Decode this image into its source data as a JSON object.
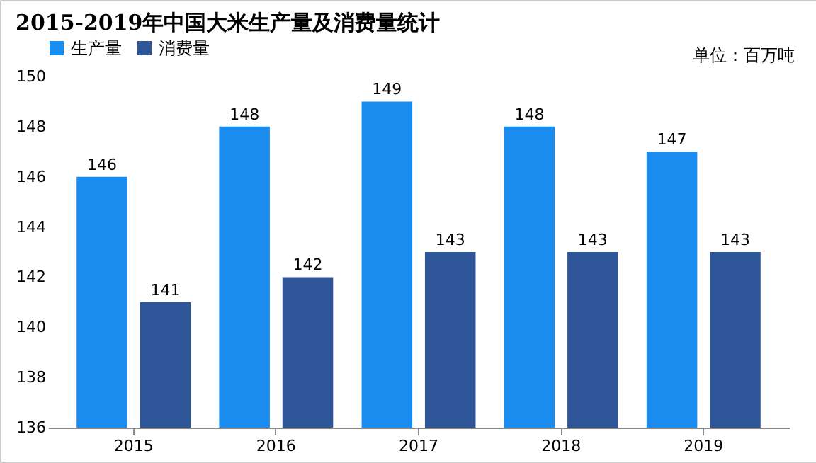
{
  "chart_data": {
    "type": "bar",
    "title": "2015-2019年中国大米生产量及消费量统计",
    "annotations": [
      "单位：百万吨"
    ],
    "categories": [
      "2015",
      "2016",
      "2017",
      "2018",
      "2019"
    ],
    "series": [
      {
        "name": "生产量",
        "color": "#1a8cf0",
        "values": [
          146,
          148,
          149,
          148,
          147
        ]
      },
      {
        "name": "消费量",
        "color": "#2e5597",
        "values": [
          141,
          142,
          143,
          143,
          143
        ]
      }
    ],
    "ylim": [
      136,
      150
    ],
    "yticks": [
      136,
      138,
      140,
      142,
      144,
      146,
      148,
      150
    ],
    "data_labels": true,
    "legend": "top",
    "grid": false
  }
}
